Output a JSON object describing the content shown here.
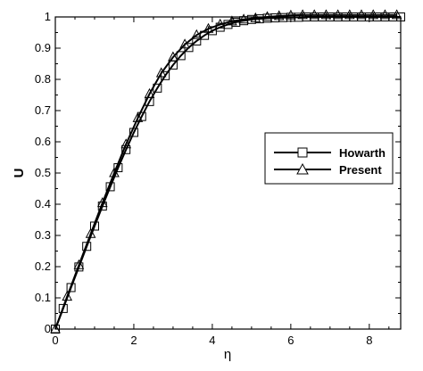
{
  "chart_data": {
    "type": "line",
    "xlabel": "η",
    "ylabel": "U",
    "xlim": [
      0,
      8.8
    ],
    "ylim": [
      0,
      1
    ],
    "xticks": [
      "0",
      "2",
      "4",
      "6",
      "8"
    ],
    "yticks": [
      "0",
      "0.1",
      "0.2",
      "0.3",
      "0.4",
      "0.5",
      "0.6",
      "0.7",
      "0.8",
      "0.9",
      "1"
    ],
    "grid": false,
    "legend_position": "right-middle",
    "series": [
      {
        "name": "Howarth",
        "marker": "square",
        "color": "#000000",
        "x": [
          0,
          0.2,
          0.4,
          0.6,
          0.8,
          1.0,
          1.2,
          1.4,
          1.6,
          1.8,
          2.0,
          2.2,
          2.4,
          2.6,
          2.8,
          3.0,
          3.2,
          3.4,
          3.6,
          3.8,
          4.0,
          4.2,
          4.4,
          4.6,
          4.8,
          5.0,
          5.2,
          5.4,
          5.6,
          5.8,
          6.0,
          6.2,
          6.4,
          6.6,
          6.8,
          7.0,
          7.2,
          7.4,
          7.6,
          7.8,
          8.0,
          8.2,
          8.4,
          8.6,
          8.8
        ],
        "y": [
          0.0,
          0.066,
          0.133,
          0.199,
          0.265,
          0.33,
          0.394,
          0.456,
          0.517,
          0.575,
          0.63,
          0.681,
          0.729,
          0.772,
          0.812,
          0.846,
          0.876,
          0.902,
          0.923,
          0.941,
          0.956,
          0.967,
          0.976,
          0.983,
          0.988,
          0.992,
          0.994,
          0.996,
          0.997,
          0.998,
          0.999,
          0.999,
          1.0,
          1.0,
          1.0,
          1.0,
          1.0,
          1.0,
          1.0,
          1.0,
          1.0,
          1.0,
          1.0,
          1.0,
          1.0
        ]
      },
      {
        "name": "Present",
        "marker": "triangle",
        "color": "#000000",
        "x": [
          0,
          0.3,
          0.6,
          0.9,
          1.2,
          1.5,
          1.8,
          2.1,
          2.4,
          2.7,
          3.0,
          3.3,
          3.6,
          3.9,
          4.2,
          4.5,
          4.8,
          5.1,
          5.4,
          5.7,
          6.0,
          6.3,
          6.6,
          6.9,
          7.2,
          7.5,
          7.8,
          8.1,
          8.4,
          8.7
        ],
        "y": [
          0.0,
          0.104,
          0.205,
          0.305,
          0.404,
          0.5,
          0.592,
          0.676,
          0.753,
          0.82,
          0.871,
          0.912,
          0.942,
          0.962,
          0.976,
          0.986,
          0.992,
          0.996,
          1.0,
          1.003,
          1.005,
          1.006,
          1.006,
          1.006,
          1.006,
          1.006,
          1.006,
          1.006,
          1.006,
          1.006
        ]
      }
    ]
  }
}
